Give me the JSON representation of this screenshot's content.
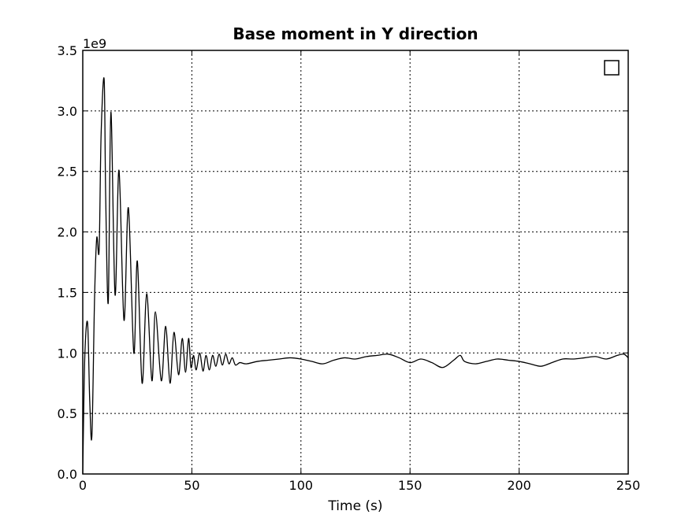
{
  "chart_data": {
    "type": "line",
    "title": "Base moment in Y direction",
    "xlabel": "Time (s)",
    "ylabel": "",
    "y_offset_label": "1e9",
    "xlim": [
      0,
      250
    ],
    "ylim": [
      0.0,
      3.5
    ],
    "x_ticks": [
      0,
      50,
      100,
      150,
      200,
      250
    ],
    "x_tick_labels": [
      "0",
      "50",
      "100",
      "150",
      "200",
      "250"
    ],
    "y_ticks": [
      0.0,
      0.5,
      1.0,
      1.5,
      2.0,
      2.5,
      3.0,
      3.5
    ],
    "y_tick_labels": [
      "0.0",
      "0.5",
      "1.0",
      "1.5",
      "2.0",
      "2.5",
      "3.0",
      "3.5"
    ],
    "grid": true,
    "legend": "upper-right, empty",
    "line_color": "#000000",
    "series": [
      {
        "x": [
          0,
          0.9,
          2.2,
          3.2,
          4.2,
          5.4,
          6.4,
          7.5,
          8.4,
          9.8,
          10.5,
          11.7,
          12.9,
          14.8,
          16.6,
          18.9,
          20.9,
          23.4,
          25.0,
          27.2,
          29.3,
          31.7,
          33.3,
          36.0,
          38.0,
          40.0,
          41.8,
          43.9,
          45.6,
          47.1,
          48.5,
          49.6,
          50.8,
          52.0,
          53.6,
          55.1,
          56.5,
          58.0,
          59.5,
          61.0,
          62.5,
          64.0,
          65.5,
          67.0,
          68.5,
          70.0,
          72.0,
          75.0,
          80.0,
          85.0,
          90.0,
          95.0,
          100.0,
          105.0,
          110.0,
          115.0,
          120.0,
          125.0,
          130.0,
          135.0,
          140.0,
          145.0,
          150.0,
          155.0,
          160.0,
          165.0,
          170.0,
          173.0,
          175.0,
          180.0,
          185.0,
          190.0,
          195.0,
          200.0,
          205.0,
          210.0,
          215.0,
          220.0,
          225.0,
          230.0,
          235.0,
          240.0,
          245.0,
          248.0,
          250.0
        ],
        "y": [
          0.0,
          0.95,
          1.25,
          0.6,
          0.32,
          1.45,
          1.95,
          1.85,
          2.8,
          3.26,
          2.3,
          1.42,
          2.99,
          1.48,
          2.51,
          1.27,
          2.2,
          1.0,
          1.76,
          0.75,
          1.49,
          0.77,
          1.34,
          0.77,
          1.22,
          0.75,
          1.17,
          0.82,
          1.12,
          0.84,
          1.12,
          0.88,
          0.98,
          0.86,
          1.0,
          0.85,
          0.98,
          0.86,
          0.98,
          0.89,
          0.99,
          0.9,
          0.99,
          0.91,
          0.96,
          0.9,
          0.92,
          0.91,
          0.93,
          0.94,
          0.95,
          0.96,
          0.95,
          0.93,
          0.91,
          0.94,
          0.96,
          0.95,
          0.97,
          0.98,
          0.99,
          0.96,
          0.92,
          0.95,
          0.92,
          0.88,
          0.94,
          0.98,
          0.93,
          0.91,
          0.93,
          0.95,
          0.94,
          0.93,
          0.91,
          0.89,
          0.92,
          0.95,
          0.95,
          0.96,
          0.97,
          0.95,
          0.98,
          0.99,
          0.96
        ]
      }
    ]
  }
}
